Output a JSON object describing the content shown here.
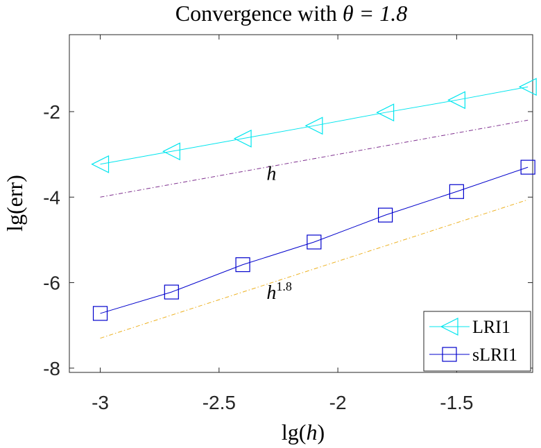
{
  "chart_data": {
    "type": "line",
    "title": "Convergence with θ = 1.8",
    "title_prefix": "Convergence with ",
    "title_math": "θ = 1.8",
    "xlabel": "lg(h)",
    "xlabel_prefix": "lg(",
    "xlabel_var": "h",
    "xlabel_suffix": ")",
    "ylabel": "lg(err)",
    "xlim": [
      -3.13,
      -1.18
    ],
    "ylim": [
      -8.1,
      -0.2
    ],
    "xticks": [
      -3,
      -2.5,
      -2,
      -1.5
    ],
    "xtick_labels": [
      "-3",
      "-2.5",
      "-2",
      "-1.5"
    ],
    "yticks": [
      -2,
      -4,
      -6,
      -8
    ],
    "ytick_labels": [
      "-2",
      "-4",
      "-6",
      "-8"
    ],
    "grid": false,
    "legend_position": "bottom-right",
    "series": [
      {
        "name": "LRI1",
        "color": "#00e5ee",
        "marker": "left-triangle",
        "x": [
          -3.0,
          -2.7,
          -2.4,
          -2.1,
          -1.8,
          -1.5,
          -1.2
        ],
        "y": [
          -3.23,
          -2.93,
          -2.63,
          -2.33,
          -2.02,
          -1.73,
          -1.42
        ]
      },
      {
        "name": "sLRI1",
        "color": "#0000cc",
        "marker": "square",
        "x": [
          -3.0,
          -2.7,
          -2.4,
          -2.1,
          -1.8,
          -1.5,
          -1.2
        ],
        "y": [
          -6.72,
          -6.22,
          -5.58,
          -5.05,
          -4.42,
          -3.87,
          -3.3
        ]
      }
    ],
    "reference_lines": [
      {
        "name": "h",
        "label_base": "h",
        "label_exp": "",
        "color": "#7e2f8e",
        "style": "dash-dot",
        "x": [
          -3.0,
          -1.2
        ],
        "y": [
          -4.0,
          -2.2
        ],
        "label_x": -2.3,
        "label_y": -3.6
      },
      {
        "name": "h^1.8",
        "label_base": "h",
        "label_exp": "1.8",
        "color": "#edb120",
        "style": "dash-dot",
        "x": [
          -3.0,
          -1.2
        ],
        "y": [
          -7.3,
          -4.06
        ],
        "label_x": -2.3,
        "label_y": -6.38
      }
    ]
  }
}
